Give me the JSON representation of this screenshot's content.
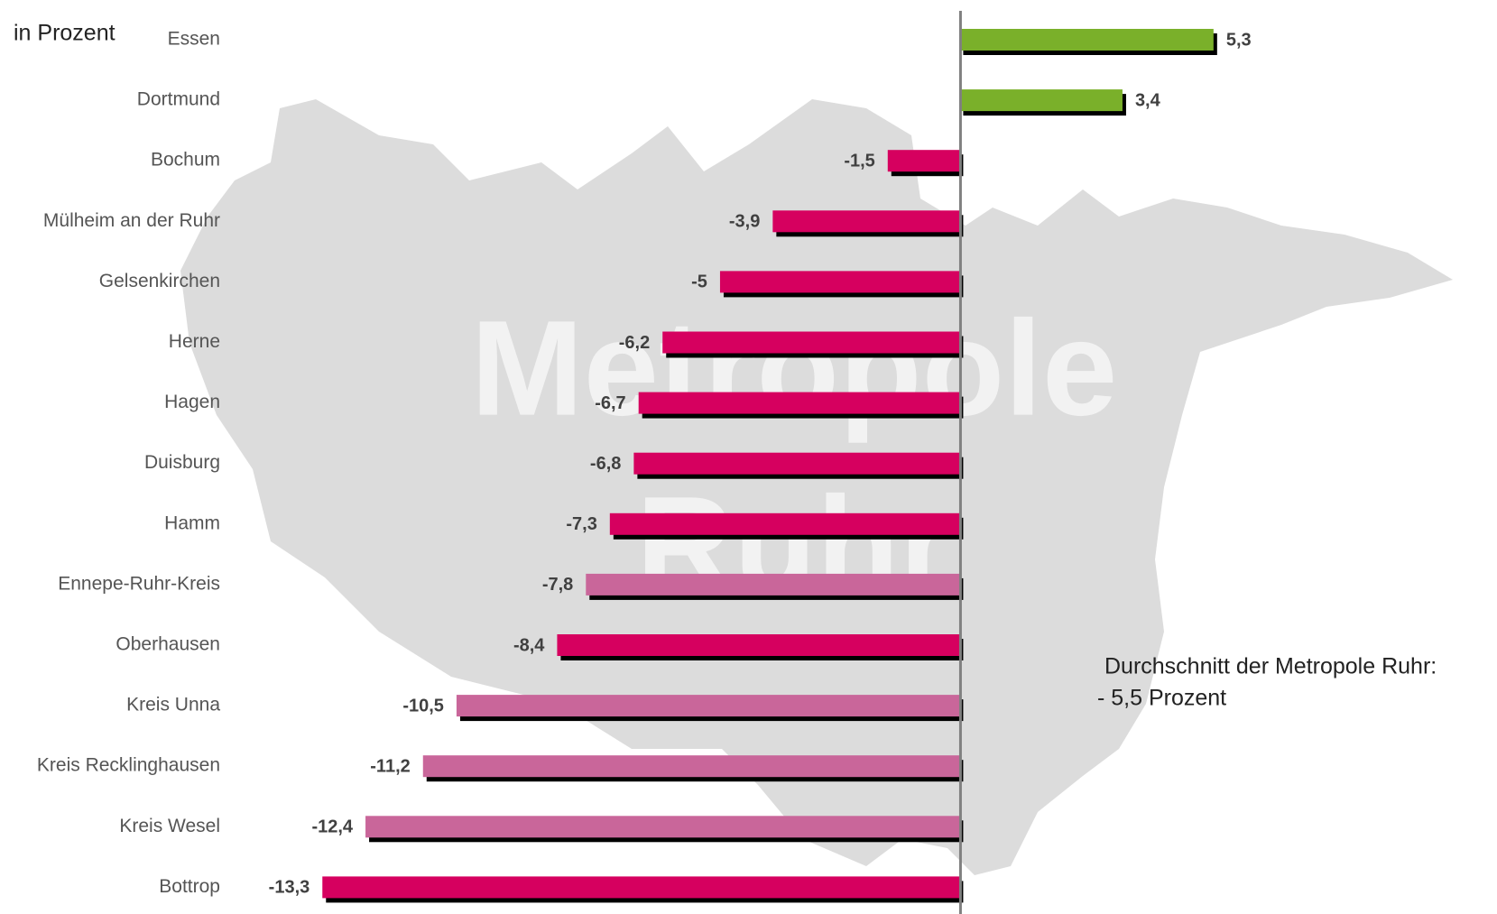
{
  "chart_data": {
    "type": "hbar",
    "unit_label": "in Prozent",
    "watermark": [
      "Metropole",
      "Ruhr"
    ],
    "annotation": [
      "Durchschnitt der Metropole Ruhr:",
      "- 5,5 Prozent"
    ],
    "categories": [
      "Essen",
      "Dortmund",
      "Bochum",
      "Mülheim an der Ruhr",
      "Gelsenkirchen",
      "Herne",
      "Hagen",
      "Duisburg",
      "Hamm",
      "Ennepe-Ruhr-Kreis",
      "Oberhausen",
      "Kreis Unna",
      "Kreis Recklinghausen",
      "Kreis Wesel",
      "Bottrop"
    ],
    "series": [
      {
        "values": [
          5.3,
          3.4,
          -1.5,
          -3.9,
          -5,
          -6.2,
          -6.7,
          -6.8,
          -7.3,
          -7.8,
          -8.4,
          -10.5,
          -11.2,
          -12.4,
          -13.3
        ],
        "value_labels": [
          "5,3",
          "3,4",
          "-1,5",
          "-3,9",
          "-5",
          "-6,2",
          "-6,7",
          "-6,8",
          "-7,3",
          "-7,8",
          "-8,4",
          "-10,5",
          "-11,2",
          "-12,4",
          "-13,3"
        ],
        "colors": [
          "#7ab02a",
          "#7ab02a",
          "#d6005f",
          "#d6005f",
          "#d6005f",
          "#d6005f",
          "#d6005f",
          "#d6005f",
          "#d6005f",
          "#c9669a",
          "#d6005f",
          "#c9669a",
          "#c9669a",
          "#c9669a",
          "#d6005f"
        ]
      }
    ],
    "xlim": [
      -15,
      6
    ]
  }
}
